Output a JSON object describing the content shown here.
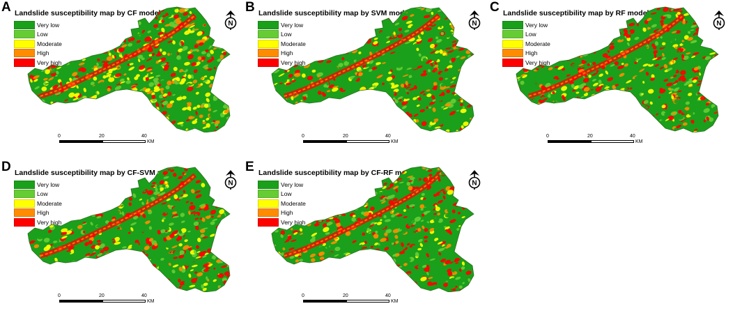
{
  "legend_classes": [
    {
      "label": "Very low",
      "color": "#1aa01a"
    },
    {
      "label": "Low",
      "color": "#66cc33"
    },
    {
      "label": "Moderate",
      "color": "#ffff00"
    },
    {
      "label": "High",
      "color": "#ff8c00"
    },
    {
      "label": "Very high",
      "color": "#ff0000"
    }
  ],
  "north_symbol": "N",
  "scale": {
    "ticks": [
      "0",
      "20",
      "40"
    ],
    "unit": "KM"
  },
  "panels": [
    {
      "letter": "A",
      "title": "Landslide susceptibility map by CF model",
      "mix": [
        0.22,
        0.18,
        0.27,
        0.13,
        0.2
      ]
    },
    {
      "letter": "B",
      "title": "Landslide susceptibility map by SVM model",
      "mix": [
        0.4,
        0.14,
        0.14,
        0.1,
        0.22
      ]
    },
    {
      "letter": "C",
      "title": "Landslide susceptibility map by RF model",
      "mix": [
        0.4,
        0.13,
        0.1,
        0.1,
        0.27
      ]
    },
    {
      "letter": "D",
      "title": "Landslide susceptibility map by CF-SVM model",
      "mix": [
        0.42,
        0.13,
        0.1,
        0.1,
        0.25
      ]
    },
    {
      "letter": "E",
      "title": "Landslide susceptibility map by CF-RF model",
      "mix": [
        0.41,
        0.13,
        0.1,
        0.1,
        0.26
      ]
    }
  ]
}
